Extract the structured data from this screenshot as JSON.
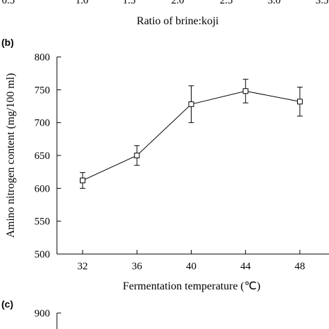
{
  "top_panel": {
    "xlabel": "Ratio of brine:koji",
    "partial_tick_labels": [
      "0.5",
      "1.0",
      "1.5",
      "2.0",
      "2.5",
      "3.0",
      "3.5"
    ]
  },
  "panel_b": {
    "label": "(b)"
  },
  "panel_c": {
    "label": "(c)",
    "visible_tick": "900"
  },
  "chart_data": [
    {
      "type": "line",
      "panel": "(b)",
      "title": "",
      "xlabel": "Fermentation temperature (℃)",
      "ylabel": "Amino nitrogen content (mg/100 ml)",
      "x": [
        32,
        36,
        40,
        44,
        48
      ],
      "series": [
        {
          "values": [
            612,
            650,
            728,
            748,
            732
          ],
          "errors": [
            12,
            15,
            28,
            18,
            22
          ]
        }
      ],
      "xticks": [
        32,
        36,
        40,
        44,
        48
      ],
      "yticks": [
        500,
        550,
        600,
        650,
        700,
        750,
        800
      ],
      "ylim": [
        500,
        800
      ],
      "grid": false,
      "marker": "open-square"
    }
  ]
}
